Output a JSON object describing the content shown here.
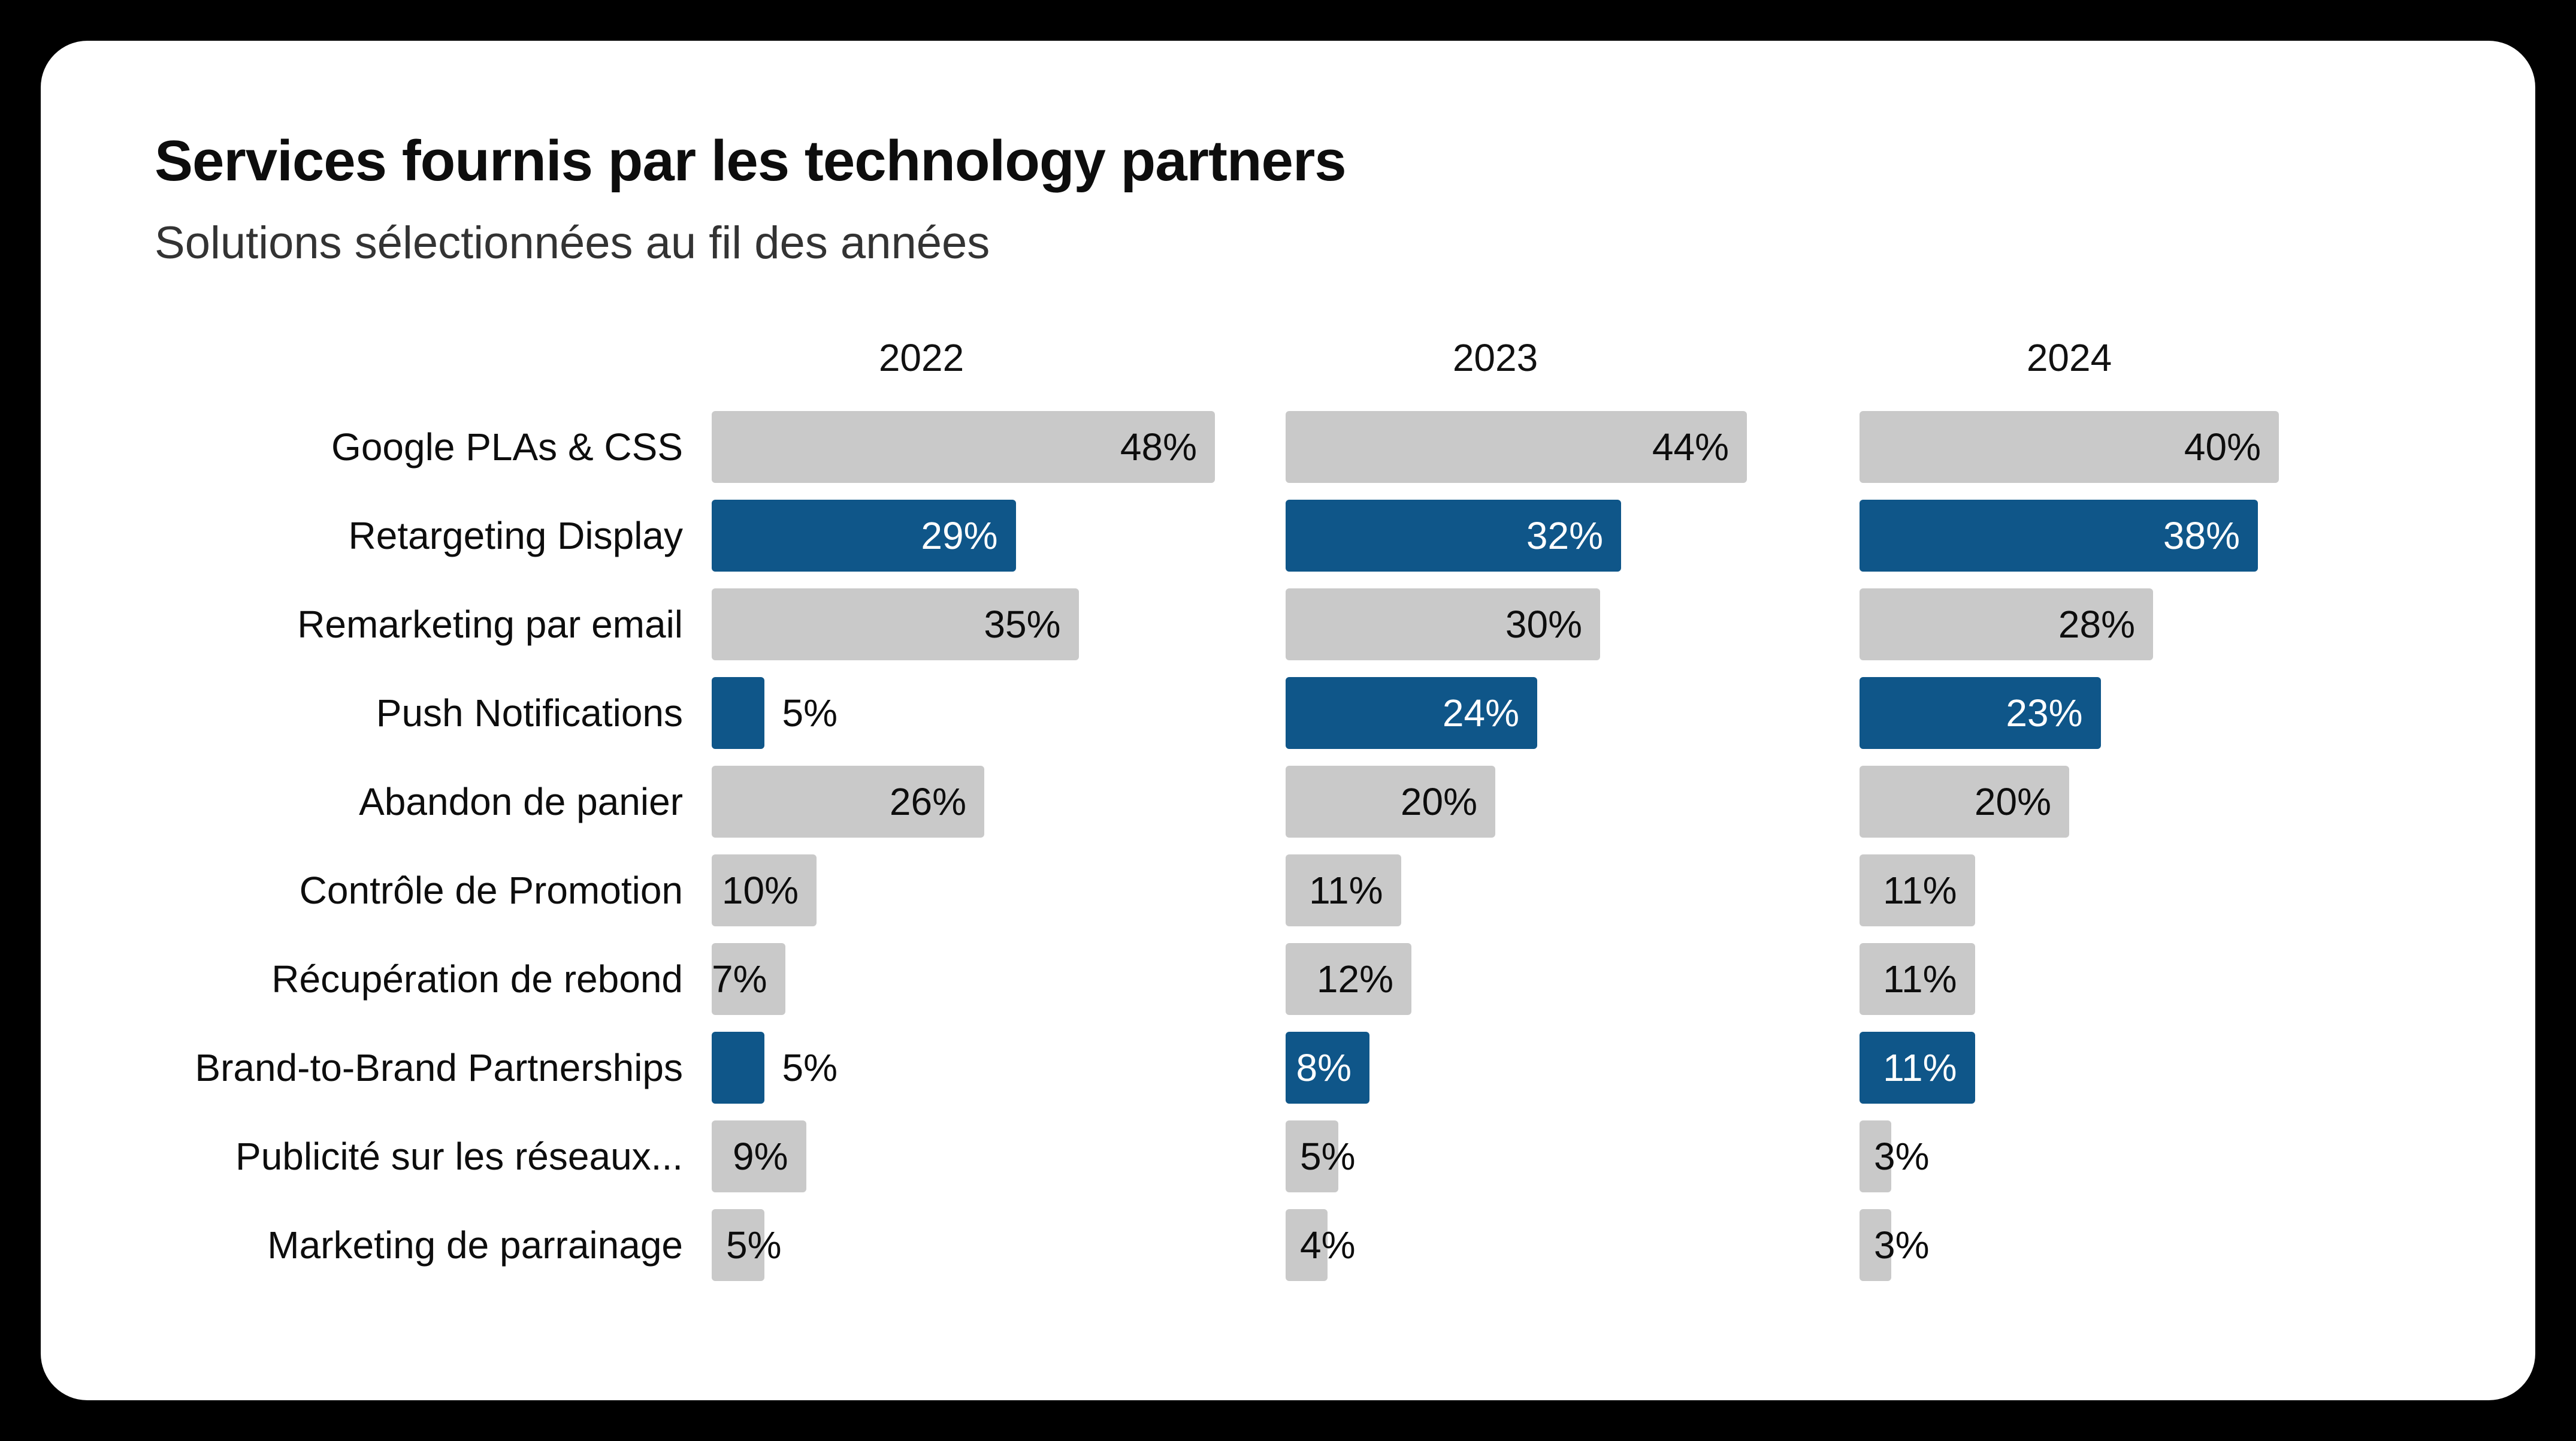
{
  "title": "Services fournis par les technology partners",
  "subtitle": "Solutions sélectionnées au fil des années",
  "colors": {
    "bar_highlight": "#0f5689",
    "bar_default": "#c9c9c9",
    "value_on_highlight": "#ffffff",
    "value_on_default": "#0d0d0d",
    "card_background": "#ffffff",
    "page_background": "#000000"
  },
  "chart_data": {
    "type": "bar",
    "orientation": "horizontal",
    "unit": "%",
    "years": [
      "2022",
      "2023",
      "2024"
    ],
    "categories": [
      "Google PLAs & CSS",
      "Retargeting Display",
      "Remarketing par email",
      "Push Notifications",
      "Abandon de panier",
      "Contrôle de Promotion",
      "Récupération de rebond",
      "Brand-to-Brand Partnerships",
      "Publicité sur les réseaux...",
      "Marketing de parrainage"
    ],
    "highlighted_categories": [
      false,
      true,
      false,
      true,
      false,
      false,
      false,
      true,
      false,
      false
    ],
    "series": [
      {
        "name": "2022",
        "values": [
          48,
          29,
          35,
          5,
          26,
          10,
          7,
          5,
          9,
          5
        ]
      },
      {
        "name": "2023",
        "values": [
          44,
          32,
          30,
          24,
          20,
          11,
          12,
          8,
          5,
          4
        ]
      },
      {
        "name": "2024",
        "values": [
          40,
          38,
          28,
          23,
          20,
          11,
          11,
          11,
          3,
          3
        ]
      }
    ],
    "value_axis_max_shown": 48,
    "grid": false,
    "legend": false
  }
}
